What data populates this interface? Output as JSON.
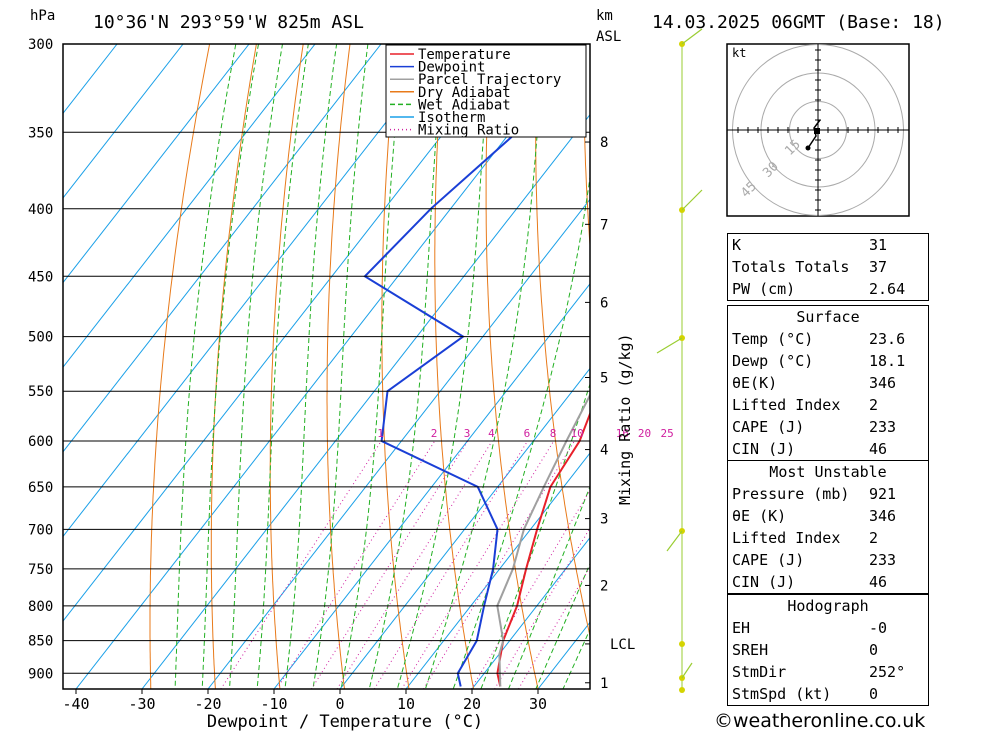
{
  "header": {
    "hpa_label": "hPa",
    "location": "10°36'N  293°59'W  825m  ASL",
    "km_label": "km",
    "asl_label": "ASL",
    "datetime": "14.03.2025  06GMT  (Base: 18)"
  },
  "legend": [
    "Temperature",
    "Dewpoint",
    "Parcel Trajectory",
    "Dry Adiabat",
    "Wet Adiabat",
    "Isotherm",
    "Mixing Ratio"
  ],
  "colors": {
    "temperature": "#e8202a",
    "dewpoint": "#1a3fd6",
    "parcel": "#a0a0a0",
    "dry_adiabat": "#e87a1a",
    "wet_adiabat": "#22b022",
    "isotherm": "#1aa0e8",
    "mixing_ratio": "#d020a0"
  },
  "chart_data": {
    "type": "line",
    "xlabel": "Dewpoint / Temperature (°C)",
    "ylabel_right": "Mixing Ratio (g/kg)",
    "x_ticks": [
      "-40",
      "-30",
      "-20",
      "-10",
      "0",
      "10",
      "20",
      "30"
    ],
    "pressure_levels": [
      "300",
      "350",
      "400",
      "450",
      "500",
      "550",
      "600",
      "650",
      "700",
      "750",
      "800",
      "850",
      "900"
    ],
    "height_ticks_km": [
      "8",
      "7",
      "6",
      "5",
      "4",
      "3",
      "2",
      "LCL",
      "1"
    ],
    "mixing_ratio_labels": [
      "1",
      "2",
      "3",
      "4",
      "6",
      "8",
      "10",
      "16",
      "20",
      "25"
    ],
    "series": [
      {
        "name": "Temperature",
        "points": [
          [
            24,
            921
          ],
          [
            22,
            900
          ],
          [
            19,
            850
          ],
          [
            17,
            800
          ],
          [
            14,
            750
          ],
          [
            11,
            700
          ],
          [
            8,
            650
          ],
          [
            7,
            600
          ],
          [
            4,
            550
          ],
          [
            2,
            500
          ],
          [
            -3,
            450
          ],
          [
            -12,
            400
          ],
          [
            -21,
            350
          ],
          [
            -31,
            300
          ]
        ]
      },
      {
        "name": "Dewpoint",
        "points": [
          [
            18,
            921
          ],
          [
            16,
            900
          ],
          [
            15,
            850
          ],
          [
            12,
            800
          ],
          [
            9,
            750
          ],
          [
            5,
            700
          ],
          [
            -3,
            650
          ],
          [
            -23,
            600
          ],
          [
            -28,
            550
          ],
          [
            -23,
            500
          ],
          [
            -45,
            450
          ],
          [
            -43,
            400
          ],
          [
            -39,
            350
          ],
          [
            -45,
            300
          ]
        ]
      },
      {
        "name": "Parcel Trajectory",
        "points": [
          [
            24,
            921
          ],
          [
            20,
            870
          ],
          [
            19,
            850
          ],
          [
            14,
            800
          ],
          [
            12,
            750
          ],
          [
            9,
            700
          ],
          [
            7,
            650
          ],
          [
            5,
            600
          ],
          [
            3,
            550
          ],
          [
            0,
            500
          ],
          [
            -4,
            450
          ],
          [
            -11,
            400
          ],
          [
            -19,
            350
          ],
          [
            -29,
            300
          ]
        ]
      }
    ]
  },
  "hodograph": {
    "unit": "kt",
    "rings": [
      "15",
      "30",
      "45"
    ]
  },
  "indices": {
    "rows": [
      {
        "label": "K",
        "value": "31"
      },
      {
        "label": "Totals Totals",
        "value": "37"
      },
      {
        "label": "PW (cm)",
        "value": "2.64"
      }
    ]
  },
  "surface": {
    "title": "Surface",
    "rows": [
      {
        "label": "Temp (°C)",
        "value": "23.6"
      },
      {
        "label": "Dewp (°C)",
        "value": "18.1"
      },
      {
        "label": "θE(K)",
        "value": "346"
      },
      {
        "label": "Lifted Index",
        "value": "2"
      },
      {
        "label": "CAPE (J)",
        "value": "233"
      },
      {
        "label": "CIN (J)",
        "value": "46"
      }
    ]
  },
  "most_unstable": {
    "title": "Most Unstable",
    "rows": [
      {
        "label": "Pressure (mb)",
        "value": "921"
      },
      {
        "label": "θE (K)",
        "value": "346"
      },
      {
        "label": "Lifted Index",
        "value": "2"
      },
      {
        "label": "CAPE (J)",
        "value": "233"
      },
      {
        "label": "CIN (J)",
        "value": "46"
      }
    ]
  },
  "hodograph_table": {
    "title": "Hodograph",
    "rows": [
      {
        "label": "EH",
        "value": "-0"
      },
      {
        "label": "SREH",
        "value": "0"
      },
      {
        "label": "StmDir",
        "value": "252°"
      },
      {
        "label": "StmSpd (kt)",
        "value": "0"
      }
    ]
  },
  "footer": "©weatheronline.co.uk"
}
